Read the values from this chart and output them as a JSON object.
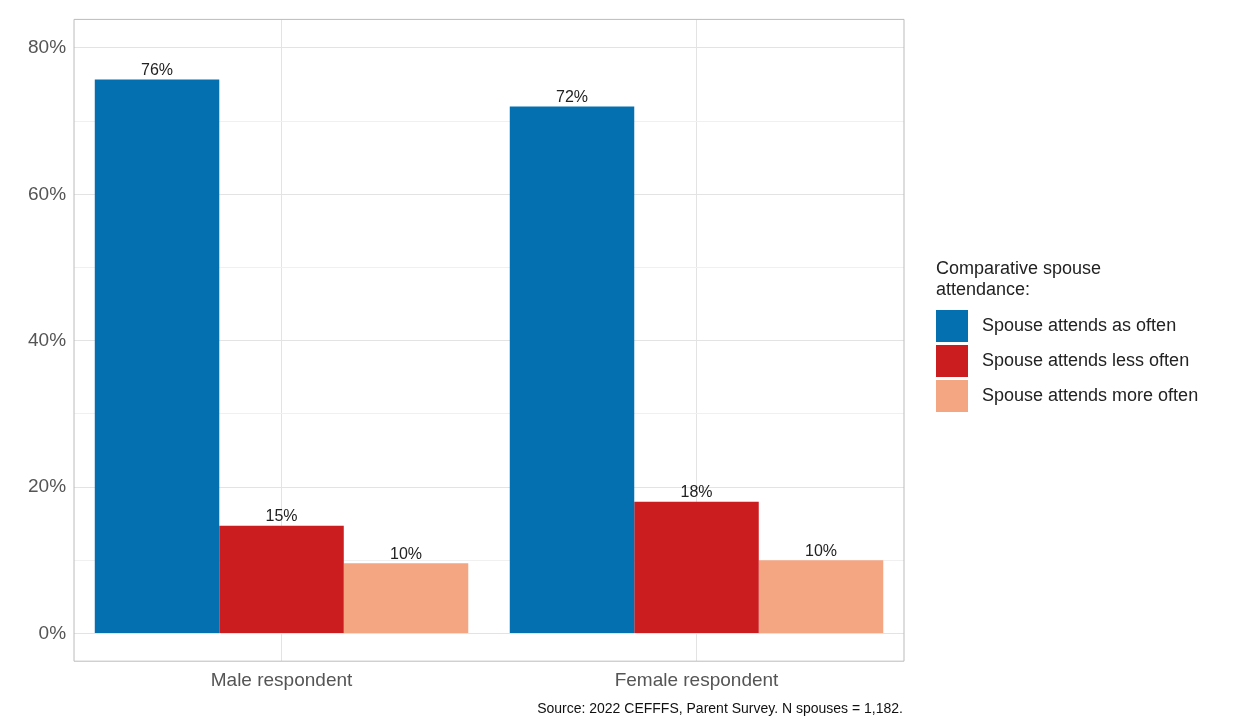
{
  "chart_data": {
    "type": "bar",
    "categories": [
      "Male respondent",
      "Female respondent"
    ],
    "series": [
      {
        "name": "Spouse attends as often",
        "color": "#0570b0",
        "values": [
          75.7,
          72
        ],
        "value_labels": [
          "76%",
          "72%"
        ]
      },
      {
        "name": "Spouse attends less often",
        "color": "#cb1c1f",
        "values": [
          14.7,
          18
        ],
        "value_labels": [
          "15%",
          "18%"
        ]
      },
      {
        "name": "Spouse attends more often",
        "color": "#f4a582",
        "values": [
          9.6,
          10
        ],
        "value_labels": [
          "10%",
          "10%"
        ]
      }
    ],
    "legend_title": "Comparative spouse attendance:",
    "ylim": [
      -3.8,
      83.9
    ],
    "yticks": [
      {
        "value": 0,
        "label": "0%"
      },
      {
        "value": 10,
        "label": null
      },
      {
        "value": 20,
        "label": "20%"
      },
      {
        "value": 30,
        "label": null
      },
      {
        "value": 40,
        "label": "40%"
      },
      {
        "value": 50,
        "label": null
      },
      {
        "value": 60,
        "label": "60%"
      },
      {
        "value": 70,
        "label": null
      },
      {
        "value": 80,
        "label": "80%"
      }
    ],
    "grid": true,
    "legend": "right",
    "annotations": [
      "Source: 2022 CEFFFS, Parent Survey. N spouses = 1,182."
    ]
  }
}
